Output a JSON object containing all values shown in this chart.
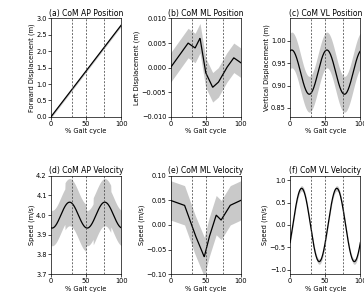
{
  "titles": [
    "(a) CoM AP Position",
    "(b) CoM ML Position",
    "(c) CoM VL Position",
    "(d) CoM AP Velocity",
    "(e) CoM ML Velocity",
    "(f) CoM VL Velocity"
  ],
  "ylabels": [
    "Forward Displacement (m)",
    "Left Displacement (m)",
    "Vertical Displacement (m)",
    "Speed (m/s)",
    "Speed (m/s)",
    "Speed (m/s)"
  ],
  "xlabel": "% Gait cycle",
  "dashed_lines": [
    30,
    50,
    75
  ],
  "background_color": "#ffffff",
  "line_color": "#000000",
  "shade_color": "#c0c0c0",
  "title_fontsize": 5.5,
  "label_fontsize": 4.8,
  "tick_fontsize": 4.8,
  "ylims": [
    [
      0,
      3
    ],
    [
      -0.01,
      0.01
    ],
    [
      0.83,
      1.05
    ],
    [
      3.7,
      4.2
    ],
    [
      -0.1,
      0.1
    ],
    [
      -1.1,
      1.1
    ]
  ],
  "yticks_a": [
    0,
    0.5,
    1.0,
    1.5,
    2.0,
    2.5,
    3.0
  ],
  "yticks_c": [
    0.85,
    0.9,
    0.95,
    1.0
  ],
  "yticks_d": [
    3.7,
    3.8,
    3.9,
    4.0,
    4.1,
    4.2
  ],
  "xticks": [
    0,
    50,
    100
  ]
}
